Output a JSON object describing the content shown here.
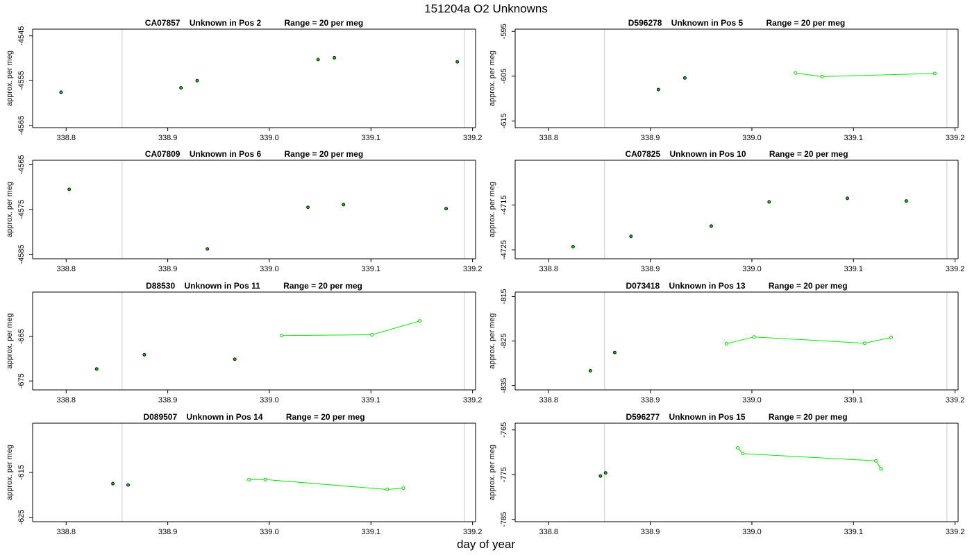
{
  "page": {
    "title": "151204a  O2 Unknowns",
    "xlabel": "day of year"
  },
  "colors": {
    "line": "#00ee00",
    "point_black": "#000000",
    "point_green": "#00dd00",
    "vline": "#d3d3d3",
    "axis": "#000000"
  },
  "chart_data": [
    {
      "type": "scatter",
      "title": "CA07857    Unknown in Pos 2          Range = 20 per meg",
      "ylabel": "approx. per meg",
      "xlim": [
        338.767,
        339.203
      ],
      "ylim": [
        -4565.5,
        -4543.5
      ],
      "xticks": [
        338.8,
        338.9,
        339.0,
        339.1,
        339.2
      ],
      "yticks": [
        -4545,
        -4555,
        -4565
      ],
      "vlines": [
        338.855,
        339.192
      ],
      "points_black": [
        [
          338.795,
          -4557.6
        ],
        [
          338.913,
          -4556.6
        ],
        [
          338.929,
          -4555.0
        ],
        [
          339.048,
          -4550.3
        ],
        [
          339.064,
          -4549.9
        ],
        [
          339.185,
          -4550.8
        ]
      ],
      "series": []
    },
    {
      "type": "line",
      "title": "D596278    Unknown in Pos 5          Range = 20 per meg",
      "ylabel": "approx. per meg",
      "xlim": [
        338.767,
        339.203
      ],
      "ylim": [
        -616.5,
        -594.5
      ],
      "xticks": [
        338.8,
        338.9,
        339.0,
        339.1,
        339.2
      ],
      "yticks": [
        -595,
        -605,
        -615
      ],
      "vlines": [
        338.855,
        339.192
      ],
      "points_black": [
        [
          338.908,
          -608.0
        ],
        [
          338.934,
          -605.4
        ]
      ],
      "series": [
        {
          "points": [
            [
              339.043,
              -604.3
            ],
            [
              339.069,
              -605.1
            ],
            [
              339.18,
              -604.4
            ]
          ]
        }
      ]
    },
    {
      "type": "scatter",
      "title": "CA07809    Unknown in Pos 6          Range = 20 per meg",
      "ylabel": "approx. per meg",
      "xlim": [
        338.767,
        339.203
      ],
      "ylim": [
        -4586.0,
        -4564.0
      ],
      "xticks": [
        338.8,
        338.9,
        339.0,
        339.1,
        339.2
      ],
      "yticks": [
        -4565,
        -4575,
        -4585
      ],
      "vlines": [
        338.855,
        339.192
      ],
      "points_black": [
        [
          338.803,
          -4570.5
        ],
        [
          338.939,
          -4583.8
        ],
        [
          339.038,
          -4574.5
        ],
        [
          339.073,
          -4573.9
        ],
        [
          339.174,
          -4574.8
        ]
      ],
      "series": []
    },
    {
      "type": "scatter",
      "title": "CA07825    Unknown in Pos 10          Range = 20 per meg",
      "ylabel": "approx. per meg",
      "xlim": [
        338.767,
        339.203
      ],
      "ylim": [
        -4727.0,
        -4705.0
      ],
      "xticks": [
        338.8,
        338.9,
        339.0,
        339.1,
        339.2
      ],
      "yticks": [
        -4715,
        -4725
      ],
      "vlines": [
        338.855,
        339.192
      ],
      "points_black": [
        [
          338.824,
          -4724.3
        ],
        [
          338.881,
          -4722.0
        ],
        [
          338.96,
          -4719.7
        ],
        [
          339.017,
          -4714.3
        ],
        [
          339.094,
          -4713.5
        ],
        [
          339.152,
          -4714.1
        ]
      ],
      "series": []
    },
    {
      "type": "line",
      "title": "D88530    Unknown in Pos 11          Range = 20 per meg",
      "ylabel": "approx. per meg",
      "xlim": [
        338.767,
        339.203
      ],
      "ylim": [
        -677.0,
        -655.0
      ],
      "xticks": [
        338.8,
        338.9,
        339.0,
        339.1,
        339.2
      ],
      "yticks": [
        -665,
        -675
      ],
      "vlines": [
        338.855,
        339.192
      ],
      "points_black": [
        [
          338.83,
          -672.3
        ],
        [
          338.877,
          -669.1
        ],
        [
          338.966,
          -670.1
        ]
      ],
      "series": [
        {
          "points": [
            [
              339.012,
              -664.8
            ],
            [
              339.101,
              -664.6
            ],
            [
              339.148,
              -661.5
            ]
          ]
        }
      ]
    },
    {
      "type": "line",
      "title": "D073418    Unknown in Pos 13          Range = 20 per meg",
      "ylabel": "approx. per meg",
      "xlim": [
        338.767,
        339.203
      ],
      "ylim": [
        -836.0,
        -814.0
      ],
      "xticks": [
        338.8,
        338.9,
        339.0,
        339.1,
        339.2
      ],
      "yticks": [
        -815,
        -825,
        -835
      ],
      "vlines": [
        338.855,
        339.192
      ],
      "points_black": [
        [
          338.841,
          -831.7
        ],
        [
          338.865,
          -827.6
        ]
      ],
      "series": [
        {
          "points": [
            [
              338.975,
              -825.6
            ],
            [
              339.002,
              -824.1
            ],
            [
              339.111,
              -825.5
            ],
            [
              339.137,
              -824.2
            ]
          ]
        }
      ]
    },
    {
      "type": "line",
      "title": "D089507    Unknown in Pos 14          Range = 20 per meg",
      "ylabel": "approx. per meg",
      "xlim": [
        338.767,
        339.203
      ],
      "ylim": [
        -626.0,
        -604.0
      ],
      "xticks": [
        338.8,
        338.9,
        339.0,
        339.1,
        339.2
      ],
      "yticks": [
        -615,
        -625
      ],
      "vlines": [
        338.855,
        339.192
      ],
      "points_black": [
        [
          338.846,
          -617.5
        ],
        [
          338.861,
          -617.8
        ]
      ],
      "series": [
        {
          "points": [
            [
              338.98,
              -616.6
            ],
            [
              338.996,
              -616.6
            ],
            [
              339.116,
              -618.8
            ],
            [
              339.132,
              -618.5
            ]
          ]
        }
      ]
    },
    {
      "type": "line",
      "title": "D596277    Unknown in Pos 15          Range = 20 per meg",
      "ylabel": "approx. per meg",
      "xlim": [
        338.767,
        339.203
      ],
      "ylim": [
        -785.5,
        -763.5
      ],
      "xticks": [
        338.8,
        338.9,
        339.0,
        339.1,
        339.2
      ],
      "yticks": [
        -765,
        -775,
        -785
      ],
      "vlines": [
        338.855,
        339.192
      ],
      "points_black": [
        [
          338.851,
          -775.3
        ],
        [
          338.856,
          -774.6
        ]
      ],
      "series": [
        {
          "points": [
            [
              338.986,
              -769.0
            ],
            [
              338.991,
              -770.3
            ],
            [
              339.122,
              -771.9
            ],
            [
              339.127,
              -773.7
            ]
          ]
        }
      ]
    }
  ]
}
